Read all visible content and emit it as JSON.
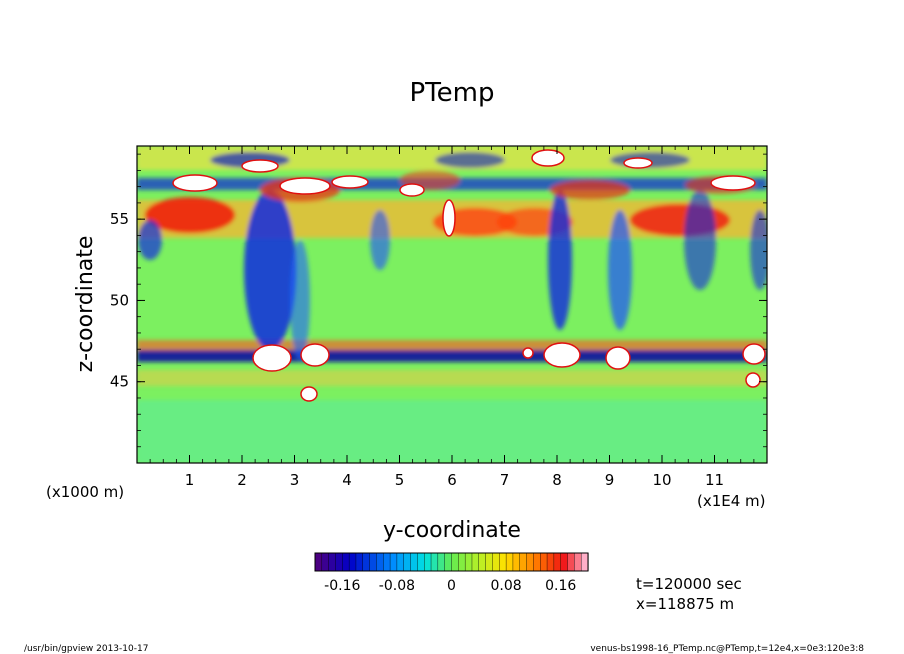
{
  "chart_data": {
    "type": "heatmap",
    "title": "PTemp",
    "xlabel": "y-coordinate",
    "ylabel": "z-coordinate",
    "x_unit_left": "(x1000 m)",
    "x_unit_right": "(x1E4 m)",
    "x_ticks": [
      "1",
      "2",
      "3",
      "4",
      "5",
      "6",
      "7",
      "8",
      "9",
      "10",
      "11"
    ],
    "x_tick_values": [
      1,
      2,
      3,
      4,
      5,
      6,
      7,
      8,
      9,
      10,
      11
    ],
    "xlim": [
      0,
      12
    ],
    "y_ticks": [
      "45",
      "50",
      "55"
    ],
    "y_tick_values": [
      45,
      50,
      55
    ],
    "ylim": [
      40,
      59.5
    ],
    "colorbar": {
      "ticks": [
        "-0.16",
        "-0.08",
        "0",
        "0.08",
        "0.16"
      ],
      "tick_values": [
        -0.16,
        -0.08,
        0,
        0.08,
        0.16
      ],
      "range": [
        -0.2,
        0.2
      ],
      "levels": 40
    },
    "grid": false,
    "legend": "colorbar-bottom"
  },
  "info": {
    "time": "t=120000 sec",
    "position": "x=118875 m"
  },
  "footer": {
    "left": "/usr/bin/gpview  2013-10-17",
    "right": "venus-bs1998-16_PTemp.nc@PTemp,t=12e4,x=0e3:120e3:8"
  }
}
